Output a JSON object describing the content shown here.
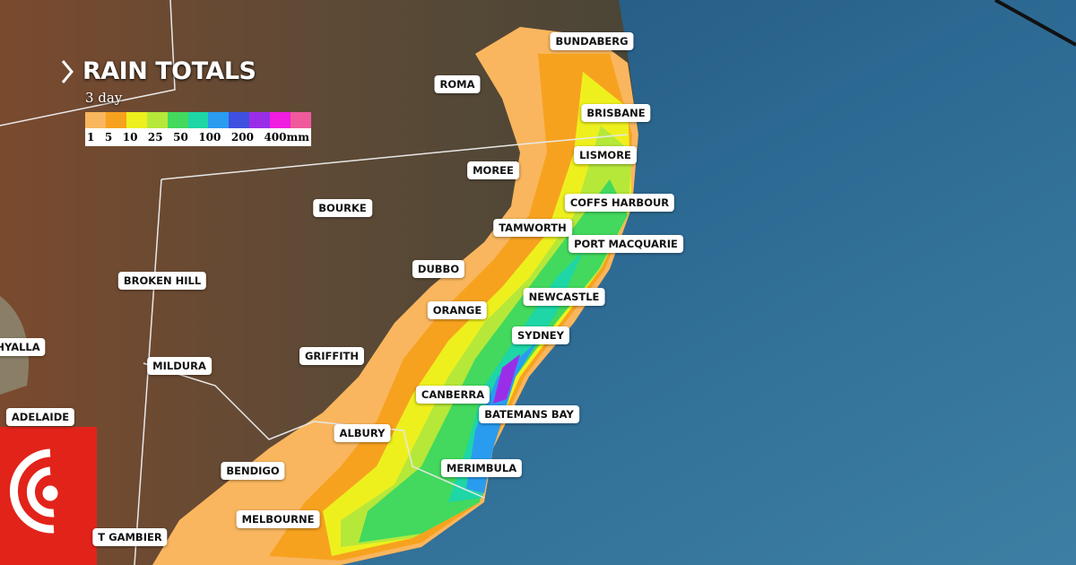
{
  "header": {
    "title": "RAIN TOTALS",
    "subtitle": "3 day"
  },
  "legend": {
    "colors": [
      "#f9b65e",
      "#f7a21f",
      "#eef01e",
      "#b6e83a",
      "#42d95e",
      "#1ed6a6",
      "#2a9cf0",
      "#3f4fe0",
      "#9a2ee8",
      "#f01ee0",
      "#f05a9c"
    ],
    "labels": [
      "1",
      "5",
      "10",
      "25",
      "50",
      "100",
      "200",
      "400mm"
    ]
  },
  "places": [
    "BUNDABERG",
    "ROMA",
    "BRISBANE",
    "LISMORE",
    "MOREE",
    "BOURKE",
    "COFFS HARBOUR",
    "TAMWORTH",
    "PORT MACQUARIE",
    "BROKEN HILL",
    "DUBBO",
    "NEWCASTLE",
    "ORANGE",
    "SYDNEY",
    "HYALLA",
    "GRIFFITH",
    "MILDURA",
    "CANBERRA",
    "BATEMANS BAY",
    "ADELAIDE",
    "ALBURY",
    "MERIMBULA",
    "BENDIGO",
    "MELBOURNE",
    "T GAMBIER"
  ]
}
